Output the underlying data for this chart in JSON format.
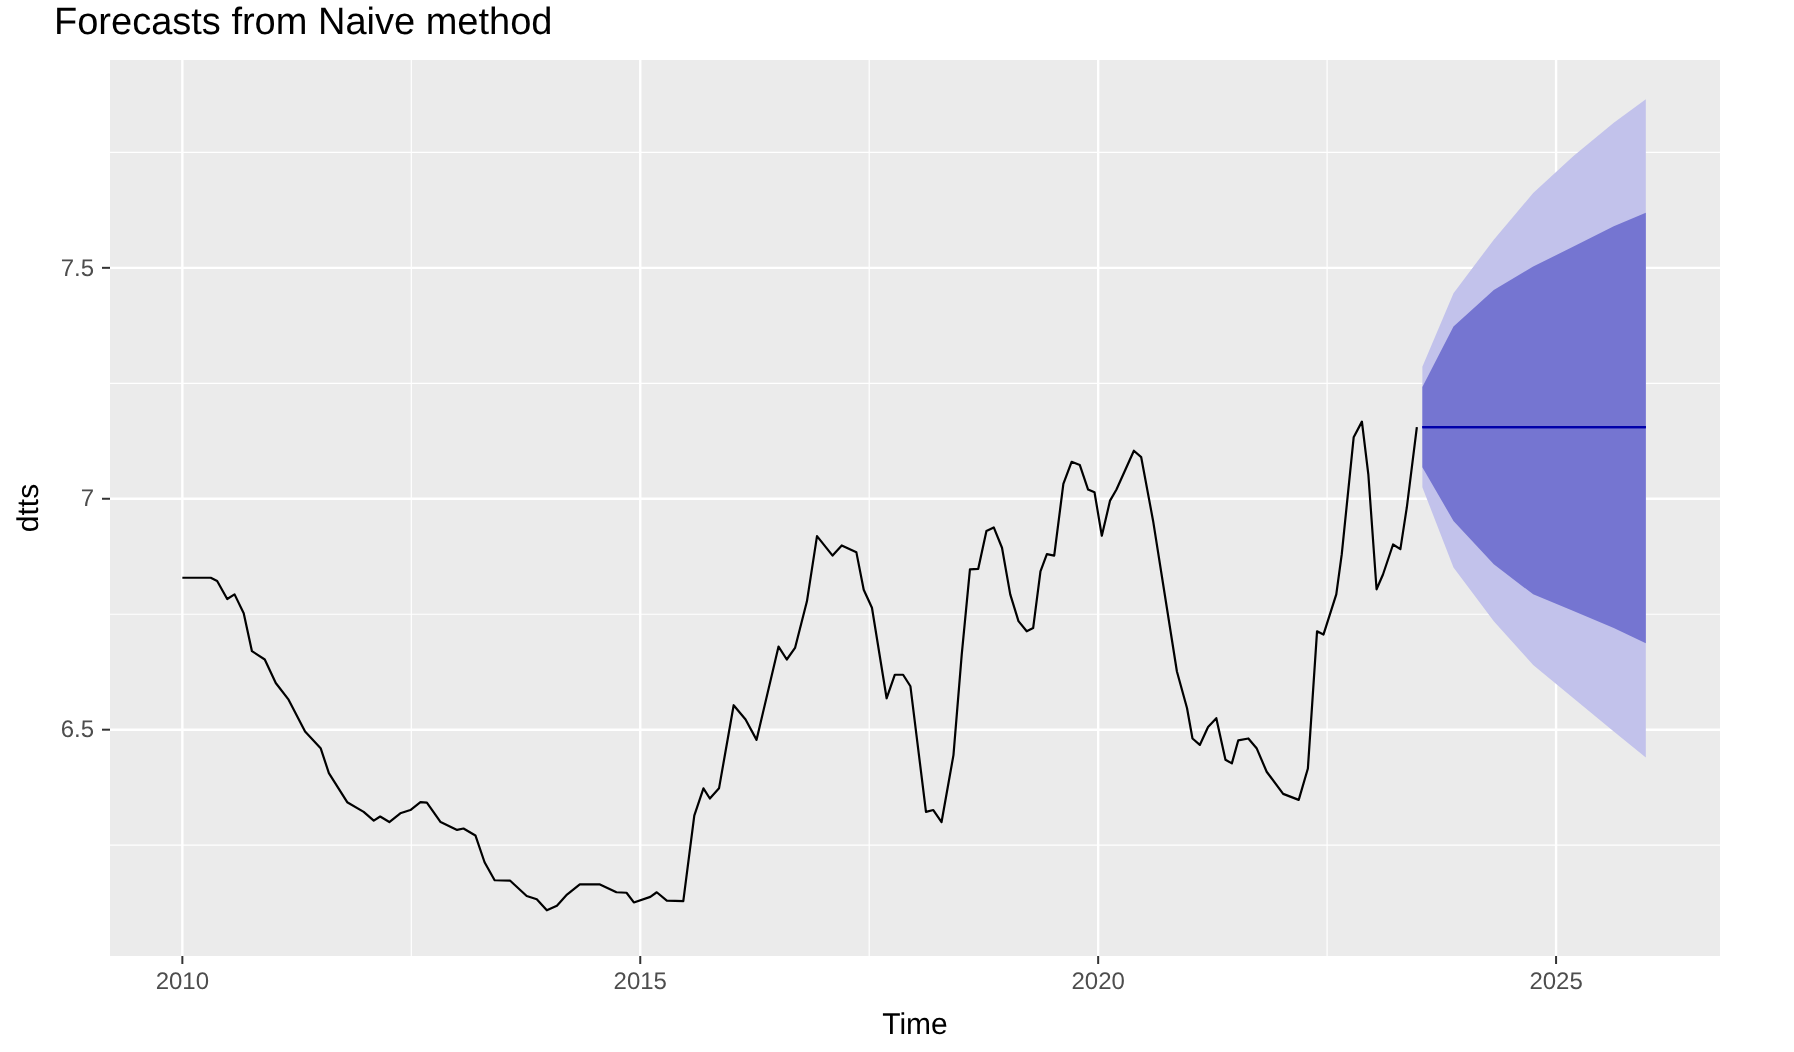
{
  "chart_data": {
    "type": "line",
    "title": "Forecasts from Naive method",
    "xlabel": "Time",
    "ylabel": "dtts",
    "xlim": [
      2009.21,
      2026.79
    ],
    "ylim": [
      6.01,
      7.95
    ],
    "xticks": [
      2010,
      {
        "value": 2012.5,
        "label": null
      },
      2015,
      {
        "value": 2017.5,
        "label": null
      },
      2020,
      {
        "value": 2022.5,
        "label": null
      },
      2025
    ],
    "yticks": [
      {
        "value": 6.25,
        "label": null
      },
      6.5,
      {
        "value": 6.75,
        "label": null
      },
      7.0,
      {
        "value": 7.25,
        "label": null
      },
      7.5,
      {
        "value": 7.75,
        "label": null
      }
    ],
    "grid": true,
    "series": [
      {
        "type": "line",
        "color": "#000000",
        "x": [
          2010.0,
          2010.31,
          2010.38,
          2010.49,
          2010.57,
          2010.67,
          2010.76,
          2010.9,
          2011.02,
          2011.16,
          2011.34,
          2011.51,
          2011.6,
          2011.8,
          2011.98,
          2012.09,
          2012.16,
          2012.26,
          2012.38,
          2012.49,
          2012.6,
          2012.67,
          2012.82,
          2013.0,
          2013.07,
          2013.2,
          2013.3,
          2013.41,
          2013.58,
          2013.76,
          2013.87,
          2013.98,
          2014.09,
          2014.2,
          2014.34,
          2014.56,
          2014.74,
          2014.85,
          2014.93,
          2015.11,
          2015.18,
          2015.29,
          2015.47,
          2015.59,
          2015.69,
          2015.76,
          2015.86,
          2016.02,
          2016.15,
          2016.27,
          2016.51,
          2016.6,
          2016.69,
          2016.82,
          2016.93,
          2017.1,
          2017.2,
          2017.36,
          2017.44,
          2017.53,
          2017.69,
          2017.78,
          2017.87,
          2017.95,
          2018.12,
          2018.2,
          2018.29,
          2018.42,
          2018.51,
          2018.6,
          2018.69,
          2018.78,
          2018.86,
          2018.95,
          2019.04,
          2019.13,
          2019.22,
          2019.29,
          2019.37,
          2019.44,
          2019.52,
          2019.62,
          2019.71,
          2019.8,
          2019.89,
          2019.96,
          2020.04,
          2020.13,
          2020.2,
          2020.39,
          2020.47,
          2020.6,
          2020.75,
          2020.86,
          2020.97,
          2021.03,
          2021.11,
          2021.2,
          2021.29,
          2021.39,
          2021.46,
          2021.53,
          2021.64,
          2021.73,
          2021.84,
          2022.02,
          2022.19,
          2022.29,
          2022.39,
          2022.46,
          2022.6,
          2022.66,
          2022.79,
          2022.88,
          2022.95,
          2023.04,
          2023.11,
          2023.22,
          2023.3,
          2023.37,
          2023.48
        ],
        "values": [
          6.829,
          6.829,
          6.822,
          6.783,
          6.793,
          6.752,
          6.67,
          6.652,
          6.601,
          6.565,
          6.496,
          6.46,
          6.406,
          6.343,
          6.322,
          6.303,
          6.312,
          6.3,
          6.319,
          6.326,
          6.343,
          6.342,
          6.3,
          6.283,
          6.286,
          6.271,
          6.213,
          6.174,
          6.173,
          6.14,
          6.133,
          6.109,
          6.119,
          6.143,
          6.165,
          6.165,
          6.148,
          6.147,
          6.126,
          6.138,
          6.148,
          6.13,
          6.129,
          6.314,
          6.373,
          6.351,
          6.373,
          6.553,
          6.522,
          6.478,
          6.68,
          6.652,
          6.677,
          6.778,
          6.919,
          6.877,
          6.899,
          6.884,
          6.803,
          6.764,
          6.568,
          6.619,
          6.619,
          6.594,
          6.322,
          6.326,
          6.3,
          6.445,
          6.662,
          6.847,
          6.848,
          6.93,
          6.938,
          6.894,
          6.793,
          6.735,
          6.713,
          6.72,
          6.843,
          6.88,
          6.877,
          7.032,
          7.08,
          7.073,
          7.02,
          7.014,
          6.92,
          6.996,
          7.02,
          7.104,
          7.09,
          6.952,
          6.764,
          6.626,
          6.547,
          6.481,
          6.467,
          6.506,
          6.525,
          6.435,
          6.427,
          6.477,
          6.481,
          6.46,
          6.409,
          6.361,
          6.348,
          6.416,
          6.713,
          6.706,
          6.793,
          6.88,
          7.133,
          7.167,
          7.053,
          6.804,
          6.836,
          6.901,
          6.891,
          6.981,
          7.155
        ]
      },
      {
        "type": "line",
        "color": "#0000aa",
        "x": [
          2023.54,
          2023.88,
          2024.32,
          2024.75,
          2025.19,
          2025.63,
          2025.98
        ],
        "values": [
          7.155,
          7.155,
          7.155,
          7.155,
          7.155,
          7.155,
          7.155
        ],
        "lower": [
          7.025,
          6.851,
          6.735,
          6.64,
          6.568,
          6.496,
          6.44
        ],
        "upper": [
          7.286,
          7.445,
          7.561,
          7.662,
          7.742,
          7.814,
          7.865
        ]
      },
      {
        "type": "line",
        "color": "#0000aa",
        "x": [
          2023.54,
          2023.88,
          2024.32,
          2024.75,
          2025.19,
          2025.63,
          2025.98
        ],
        "values": [
          7.155,
          7.155,
          7.155,
          7.155,
          7.155,
          7.155,
          7.155
        ],
        "lower": [
          7.068,
          6.952,
          6.858,
          6.793,
          6.757,
          6.72,
          6.687
        ],
        "upper": [
          7.242,
          7.373,
          7.452,
          7.503,
          7.546,
          7.59,
          7.619
        ]
      }
    ]
  }
}
